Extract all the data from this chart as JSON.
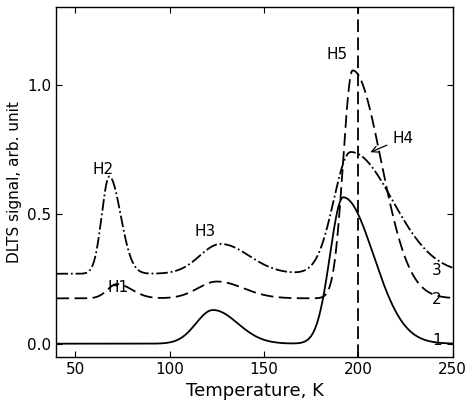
{
  "title": "",
  "xlabel": "Temperature, K",
  "ylabel": "DLTS signal, arb. unit",
  "xlim": [
    40,
    250
  ],
  "ylim": [
    -0.05,
    1.3
  ],
  "yticks": [
    0.0,
    0.5,
    1.0
  ],
  "xticks": [
    50,
    100,
    150,
    200,
    250
  ],
  "vline_x": 200,
  "figsize": [
    4.74,
    4.07
  ],
  "dpi": 100
}
